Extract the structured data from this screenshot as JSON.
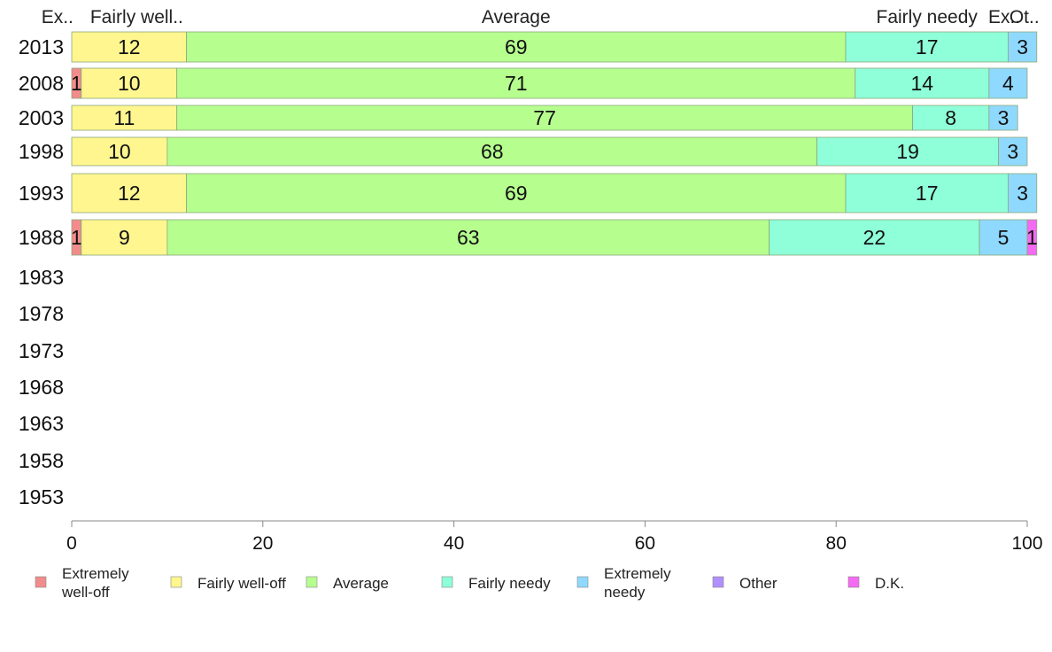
{
  "chart_data": {
    "type": "bar",
    "orientation": "horizontal",
    "stacked": true,
    "categories": [
      "2013",
      "2008",
      "2003",
      "1998",
      "1993",
      "1988",
      "1983",
      "1978",
      "1973",
      "1968",
      "1963",
      "1958",
      "1953"
    ],
    "series": [
      {
        "name": "Extremely well-off",
        "color": "#f28c8c",
        "values": [
          0,
          1,
          0,
          0,
          0,
          1,
          null,
          null,
          null,
          null,
          null,
          null,
          null
        ]
      },
      {
        "name": "Fairly well-off",
        "color": "#fff68f",
        "values": [
          12,
          10,
          11,
          10,
          12,
          9,
          null,
          null,
          null,
          null,
          null,
          null,
          null
        ]
      },
      {
        "name": "Average",
        "color": "#b6ff8f",
        "values": [
          69,
          71,
          77,
          68,
          69,
          63,
          null,
          null,
          null,
          null,
          null,
          null,
          null
        ]
      },
      {
        "name": "Fairly needy",
        "color": "#8fffd9",
        "values": [
          17,
          14,
          8,
          19,
          17,
          22,
          null,
          null,
          null,
          null,
          null,
          null,
          null
        ]
      },
      {
        "name": "Extremely needy",
        "color": "#8fd9ff",
        "values": [
          3,
          4,
          3,
          3,
          3,
          5,
          null,
          null,
          null,
          null,
          null,
          null,
          null
        ]
      },
      {
        "name": "Other",
        "color": "#b08fff",
        "values": [
          0,
          0,
          0,
          0,
          0,
          0,
          null,
          null,
          null,
          null,
          null,
          null,
          null
        ]
      },
      {
        "name": "D.K.",
        "color": "#f56af2",
        "values": [
          0,
          0,
          0,
          0,
          0,
          1,
          null,
          null,
          null,
          null,
          null,
          null,
          null
        ]
      }
    ],
    "top_labels": [
      "Ex..",
      "Fairly well..",
      "Average",
      "Fairly needy",
      "Ex..",
      "Ot.."
    ],
    "xlim": [
      0,
      100
    ],
    "xticks": [
      "0",
      "20",
      "40",
      "60",
      "80",
      "100"
    ],
    "legend": {
      "position": "bottom",
      "items": [
        {
          "lines": [
            "Extremely",
            "well-off"
          ],
          "color": "#f28c8c"
        },
        {
          "lines": [
            "Fairly well-off"
          ],
          "color": "#fff68f"
        },
        {
          "lines": [
            "Average"
          ],
          "color": "#b6ff8f"
        },
        {
          "lines": [
            "Fairly needy"
          ],
          "color": "#8fffd9"
        },
        {
          "lines": [
            "Extremely",
            "needy"
          ],
          "color": "#8fd9ff"
        },
        {
          "lines": [
            "Other"
          ],
          "color": "#b08fff"
        },
        {
          "lines": [
            "D.K."
          ],
          "color": "#f56af2"
        }
      ]
    },
    "grid": false
  }
}
